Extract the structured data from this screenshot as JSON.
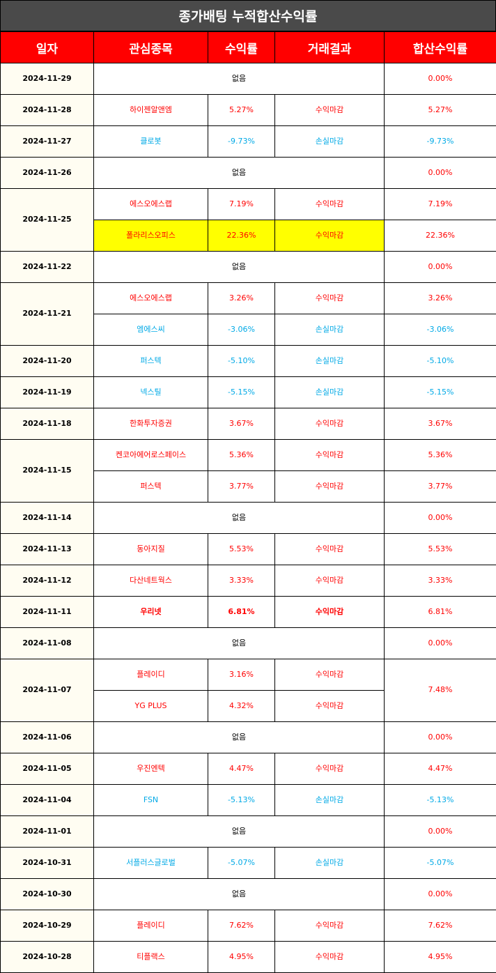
{
  "title": "종가배팅 누적합산수익률",
  "headers": [
    "일자",
    "관심종목",
    "수익률",
    "거래결과",
    "합산수익률"
  ],
  "none_label": "없음",
  "colors": {
    "header": "#ff0000",
    "title_bg": "#4a4a4a",
    "positive": "#ff0000",
    "negative": "#00a9e6",
    "highlight": "#ffff00",
    "date_bg": "#fffdf2"
  },
  "rows": [
    {
      "date": "2024-11-29",
      "trades": [],
      "total": "0.00%",
      "total_sign": "pos"
    },
    {
      "date": "2024-11-28",
      "trades": [
        {
          "stock": "하이젠알앤엠",
          "ret": "5.27%",
          "result": "수익마감",
          "sign": "pos"
        }
      ],
      "total": "5.27%",
      "total_sign": "pos"
    },
    {
      "date": "2024-11-27",
      "trades": [
        {
          "stock": "클로봇",
          "ret": "-9.73%",
          "result": "손실마감",
          "sign": "neg"
        }
      ],
      "total": "-9.73%",
      "total_sign": "neg"
    },
    {
      "date": "2024-11-26",
      "trades": [],
      "total": "0.00%",
      "total_sign": "pos"
    },
    {
      "date": "2024-11-25",
      "trades": [
        {
          "stock": "에스오에스랩",
          "ret": "7.19%",
          "result": "수익마감",
          "sign": "pos",
          "total": "7.19%",
          "total_sign": "pos"
        },
        {
          "stock": "폴라리스오피스",
          "ret": "22.36%",
          "result": "수익마감",
          "sign": "pos",
          "highlight": true,
          "total": "22.36%",
          "total_sign": "pos"
        }
      ],
      "split_total": true
    },
    {
      "date": "2024-11-22",
      "trades": [],
      "total": "0.00%",
      "total_sign": "pos"
    },
    {
      "date": "2024-11-21",
      "trades": [
        {
          "stock": "에스오에스랩",
          "ret": "3.26%",
          "result": "수익마감",
          "sign": "pos",
          "total": "3.26%",
          "total_sign": "pos"
        },
        {
          "stock": "엠에스씨",
          "ret": "-3.06%",
          "result": "손실마감",
          "sign": "neg",
          "total": "-3.06%",
          "total_sign": "neg"
        }
      ],
      "split_total": true
    },
    {
      "date": "2024-11-20",
      "trades": [
        {
          "stock": "퍼스텍",
          "ret": "-5.10%",
          "result": "손실마감",
          "sign": "neg"
        }
      ],
      "total": "-5.10%",
      "total_sign": "neg"
    },
    {
      "date": "2024-11-19",
      "trades": [
        {
          "stock": "넥스틸",
          "ret": "-5.15%",
          "result": "손실마감",
          "sign": "neg"
        }
      ],
      "total": "-5.15%",
      "total_sign": "neg"
    },
    {
      "date": "2024-11-18",
      "trades": [
        {
          "stock": "한화투자증권",
          "ret": "3.67%",
          "result": "수익마감",
          "sign": "pos"
        }
      ],
      "total": "3.67%",
      "total_sign": "pos"
    },
    {
      "date": "2024-11-15",
      "trades": [
        {
          "stock": "켄코아에어로스페이스",
          "ret": "5.36%",
          "result": "수익마감",
          "sign": "pos",
          "total": "5.36%",
          "total_sign": "pos"
        },
        {
          "stock": "퍼스텍",
          "ret": "3.77%",
          "result": "수익마감",
          "sign": "pos",
          "total": "3.77%",
          "total_sign": "pos"
        }
      ],
      "split_total": true
    },
    {
      "date": "2024-11-14",
      "trades": [],
      "total": "0.00%",
      "total_sign": "pos"
    },
    {
      "date": "2024-11-13",
      "trades": [
        {
          "stock": "동아지질",
          "ret": "5.53%",
          "result": "수익마감",
          "sign": "pos"
        }
      ],
      "total": "5.53%",
      "total_sign": "pos"
    },
    {
      "date": "2024-11-12",
      "trades": [
        {
          "stock": "다산네트웍스",
          "ret": "3.33%",
          "result": "수익마감",
          "sign": "pos"
        }
      ],
      "total": "3.33%",
      "total_sign": "pos"
    },
    {
      "date": "2024-11-11",
      "trades": [
        {
          "stock": "우리넷",
          "ret": "6.81%",
          "result": "수익마감",
          "sign": "pos",
          "bold": true
        }
      ],
      "total": "6.81%",
      "total_sign": "pos"
    },
    {
      "date": "2024-11-08",
      "trades": [],
      "total": "0.00%",
      "total_sign": "pos"
    },
    {
      "date": "2024-11-07",
      "trades": [
        {
          "stock": "플레이디",
          "ret": "3.16%",
          "result": "수익마감",
          "sign": "pos"
        },
        {
          "stock": "YG PLUS",
          "ret": "4.32%",
          "result": "수익마감",
          "sign": "pos"
        }
      ],
      "total": "7.48%",
      "total_sign": "pos"
    },
    {
      "date": "2024-11-06",
      "trades": [],
      "total": "0.00%",
      "total_sign": "pos"
    },
    {
      "date": "2024-11-05",
      "trades": [
        {
          "stock": "우진엔텍",
          "ret": "4.47%",
          "result": "수익마감",
          "sign": "pos"
        }
      ],
      "total": "4.47%",
      "total_sign": "pos"
    },
    {
      "date": "2024-11-04",
      "trades": [
        {
          "stock": "FSN",
          "ret": "-5.13%",
          "result": "손실마감",
          "sign": "neg"
        }
      ],
      "total": "-5.13%",
      "total_sign": "neg"
    },
    {
      "date": "2024-11-01",
      "trades": [],
      "total": "0.00%",
      "total_sign": "pos"
    },
    {
      "date": "2024-10-31",
      "trades": [
        {
          "stock": "서플러스글로벌",
          "ret": "-5.07%",
          "result": "손실마감",
          "sign": "neg"
        }
      ],
      "total": "-5.07%",
      "total_sign": "neg"
    },
    {
      "date": "2024-10-30",
      "trades": [],
      "total": "0.00%",
      "total_sign": "pos"
    },
    {
      "date": "2024-10-29",
      "trades": [
        {
          "stock": "플레이디",
          "ret": "7.62%",
          "result": "수익마감",
          "sign": "pos"
        }
      ],
      "total": "7.62%",
      "total_sign": "pos"
    },
    {
      "date": "2024-10-28",
      "trades": [
        {
          "stock": "티플랙스",
          "ret": "4.95%",
          "result": "수익마감",
          "sign": "pos"
        }
      ],
      "total": "4.95%",
      "total_sign": "pos"
    }
  ]
}
